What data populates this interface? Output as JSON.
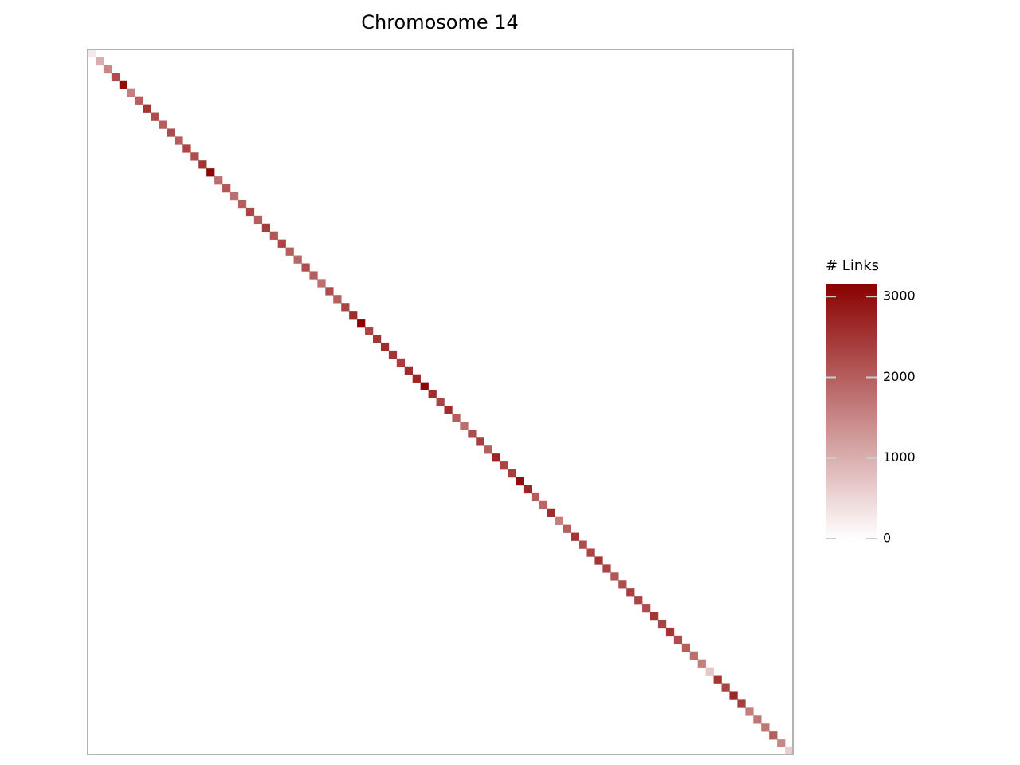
{
  "chart_data": {
    "type": "heatmap",
    "title": "Chromosome 14",
    "colorbar_label": "# Links",
    "low_color": "#ffffff",
    "high_color": "#8b0000",
    "clim": [
      0,
      3160
    ],
    "cticks": [
      0,
      1000,
      2000,
      3000
    ],
    "diagonal_values": [
      300,
      1000,
      1500,
      2200,
      3000,
      1600,
      2000,
      2500,
      2200,
      2000,
      2200,
      2000,
      2300,
      2200,
      2500,
      3100,
      1800,
      2100,
      1800,
      2000,
      2300,
      2000,
      2400,
      2100,
      2300,
      2000,
      1900,
      2200,
      2000,
      1800,
      2200,
      2000,
      2300,
      2600,
      3200,
      2300,
      2500,
      2600,
      2500,
      2400,
      2600,
      2700,
      3100,
      2600,
      2300,
      2600,
      2000,
      1800,
      2200,
      2400,
      2000,
      2700,
      2300,
      2400,
      3000,
      2700,
      2000,
      1900,
      2600,
      1600,
      2000,
      2500,
      2200,
      2300,
      2500,
      2300,
      2100,
      2200,
      2400,
      2300,
      2200,
      2500,
      2300,
      2500,
      2200,
      2000,
      1800,
      1600,
      700,
      2500,
      2300,
      2700,
      2400,
      1600,
      1700,
      1700,
      2000,
      1500,
      600
    ]
  }
}
